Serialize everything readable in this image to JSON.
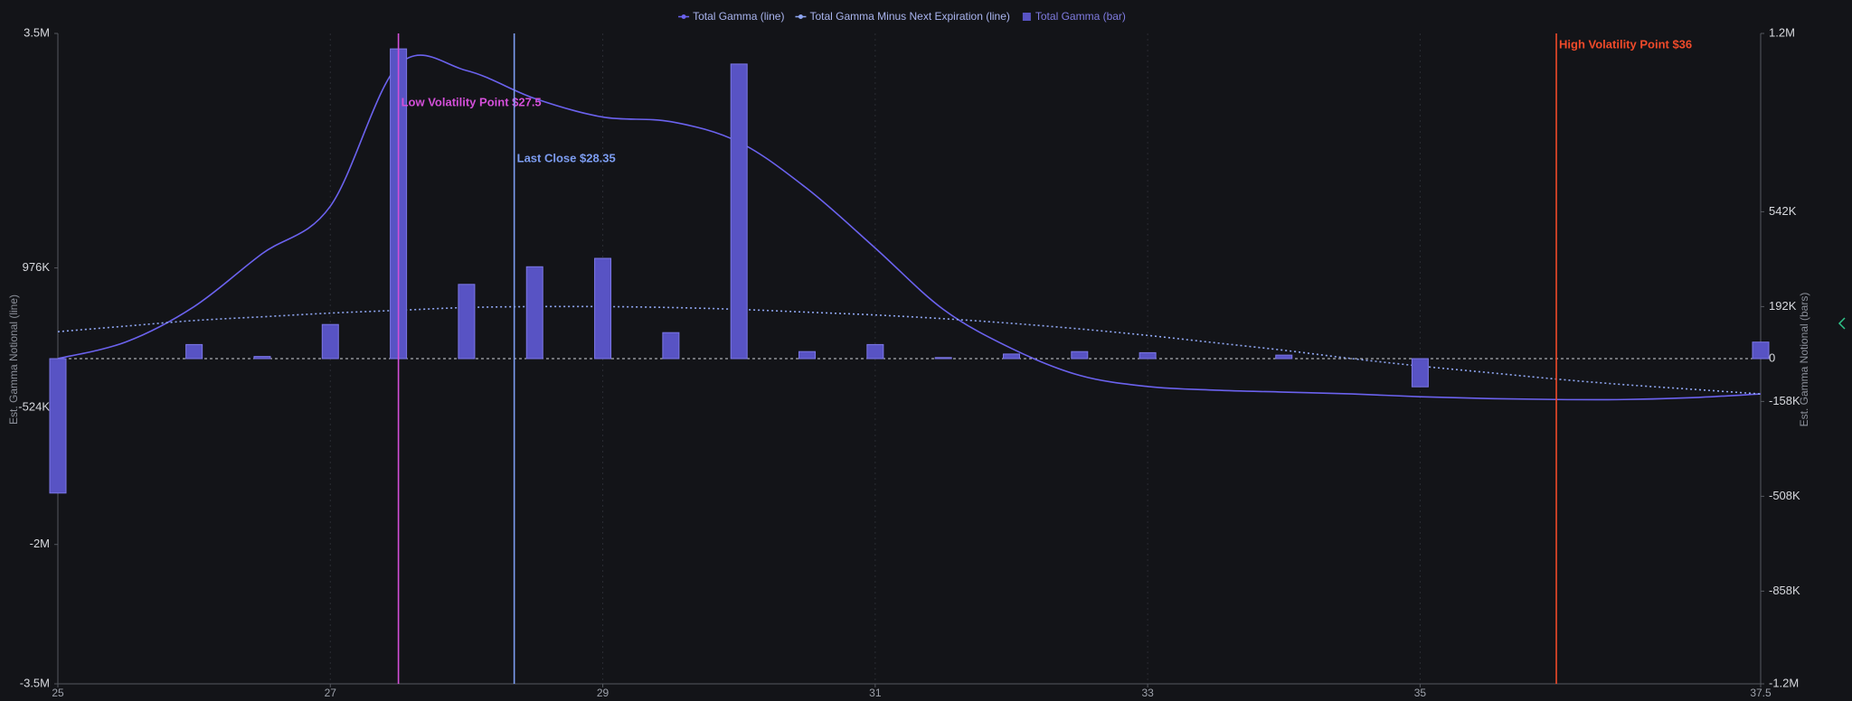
{
  "chart_data": {
    "type": "combo",
    "legend": "top",
    "x": [
      25,
      25.5,
      26,
      26.5,
      27,
      27.5,
      28,
      28.5,
      29,
      29.5,
      30,
      30.5,
      31,
      31.5,
      32,
      32.5,
      33,
      33.5,
      34,
      34.5,
      35,
      35.5,
      36,
      36.5,
      37,
      37.5
    ],
    "xlim": [
      25,
      37.5
    ],
    "xticks": [
      25,
      27,
      29,
      31,
      33,
      35,
      37.5
    ],
    "ylim": [
      -3500000,
      3500000
    ],
    "yticks": [
      {
        "value": 3500000,
        "label": "3.5M"
      },
      {
        "value": 976000,
        "label": "976K"
      },
      {
        "value": -524000,
        "label": "-524K"
      },
      {
        "value": -2000000,
        "label": "-2M"
      },
      {
        "value": -3500000,
        "label": "-3.5M"
      }
    ],
    "y2lim": [
      -1200000,
      1200000
    ],
    "y2ticks": [
      {
        "value": 1200000,
        "label": "1.2M"
      },
      {
        "value": 542000,
        "label": "542K"
      },
      {
        "value": 192000,
        "label": "192K"
      },
      0,
      {
        "value": -158000,
        "label": "-158K"
      },
      {
        "value": -508000,
        "label": "-508K"
      },
      {
        "value": -858000,
        "label": "-858K"
      },
      {
        "value": -1200000,
        "label": "-1.2M"
      }
    ],
    "ylabel": "Est. Gamma Notional (line)",
    "y2label": "Est. Gamma Notional (bars)",
    "grid": true,
    "series": [
      {
        "name": "Total Gamma (line)",
        "type": "line",
        "style": "solid",
        "color": "#6b62ee",
        "values": [
          0,
          180000,
          560000,
          1130000,
          1640000,
          3160000,
          3100000,
          2800000,
          2600000,
          2550000,
          2330000,
          1830000,
          1190000,
          530000,
          110000,
          -180000,
          -300000,
          -340000,
          -360000,
          -380000,
          -410000,
          -430000,
          -440000,
          -440000,
          -420000,
          -380000
        ]
      },
      {
        "name": "Total Gamma Minus Next Expiration (line)",
        "type": "line",
        "style": "dotted",
        "color": "#8fa6f2",
        "values": [
          290000,
          350000,
          410000,
          450000,
          490000,
          520000,
          550000,
          560000,
          560000,
          550000,
          530000,
          500000,
          470000,
          430000,
          380000,
          320000,
          250000,
          170000,
          90000,
          0,
          -80000,
          -150000,
          -220000,
          -280000,
          -330000,
          -380000
        ]
      },
      {
        "name": "Total Gamma (bar)",
        "type": "bar",
        "axis": "y2",
        "color": "#5853c4",
        "x": [
          25,
          26,
          26.5,
          27,
          27.5,
          28,
          28.5,
          29,
          29.5,
          30,
          30.5,
          31,
          31.5,
          32,
          32.5,
          33,
          34,
          35,
          37.5
        ],
        "values": [
          -496000,
          52000,
          8000,
          126000,
          1143000,
          274000,
          339000,
          370000,
          96000,
          1087000,
          26000,
          52000,
          4000,
          17000,
          26000,
          22000,
          13000,
          -104000,
          61000
        ]
      }
    ],
    "annotations": [
      {
        "x": 27.5,
        "text": "Low Volatility Point $27.5",
        "color": "#d34fd8"
      },
      {
        "x": 28.35,
        "text": "Last Close $28.35",
        "color": "#7c9cf0"
      },
      {
        "x": 36,
        "text": "High Volatility Point $36",
        "color": "#ef4a2a"
      }
    ]
  }
}
